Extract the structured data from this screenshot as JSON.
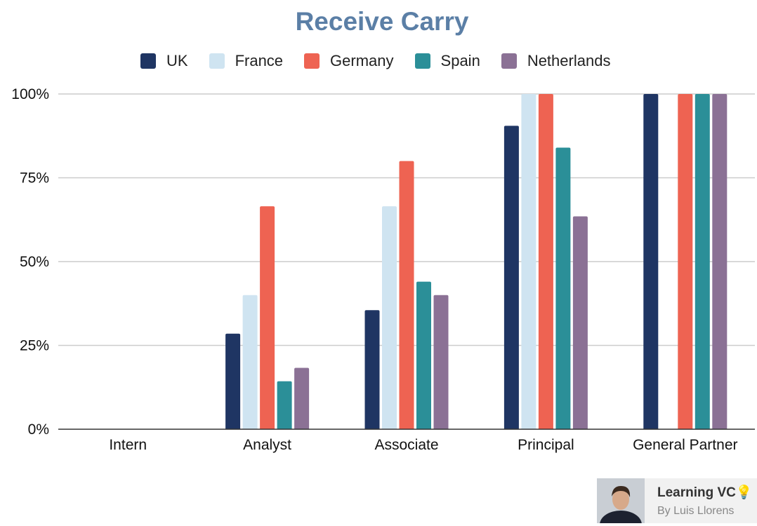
{
  "chart_data": {
    "type": "bar",
    "title": "Receive Carry",
    "xlabel": "",
    "ylabel": "",
    "ylim": [
      0,
      100
    ],
    "yticks": [
      "0%",
      "25%",
      "50%",
      "75%",
      "100%"
    ],
    "grid": true,
    "legend_position": "top",
    "categories": [
      "Intern",
      "Analyst",
      "Associate",
      "Principal",
      "General Partner"
    ],
    "series": [
      {
        "name": "UK",
        "color": "#1f3563",
        "values": [
          0,
          28.5,
          35.5,
          90.5,
          100
        ]
      },
      {
        "name": "France",
        "color": "#cfe4f1",
        "values": [
          0,
          40,
          66.5,
          100,
          0
        ]
      },
      {
        "name": "Germany",
        "color": "#ee6352",
        "values": [
          0,
          66.5,
          80,
          100,
          100
        ]
      },
      {
        "name": "Spain",
        "color": "#2b8f98",
        "values": [
          0,
          14.3,
          44,
          84,
          100
        ]
      },
      {
        "name": "Netherlands",
        "color": "#8b7195",
        "values": [
          0,
          18.3,
          40,
          63.5,
          100
        ]
      }
    ]
  },
  "branding": {
    "name": "Learning VC",
    "bulb_icon": "💡",
    "byline": "By Luis Llorens",
    "avatar_icon": "person-photo-icon"
  }
}
